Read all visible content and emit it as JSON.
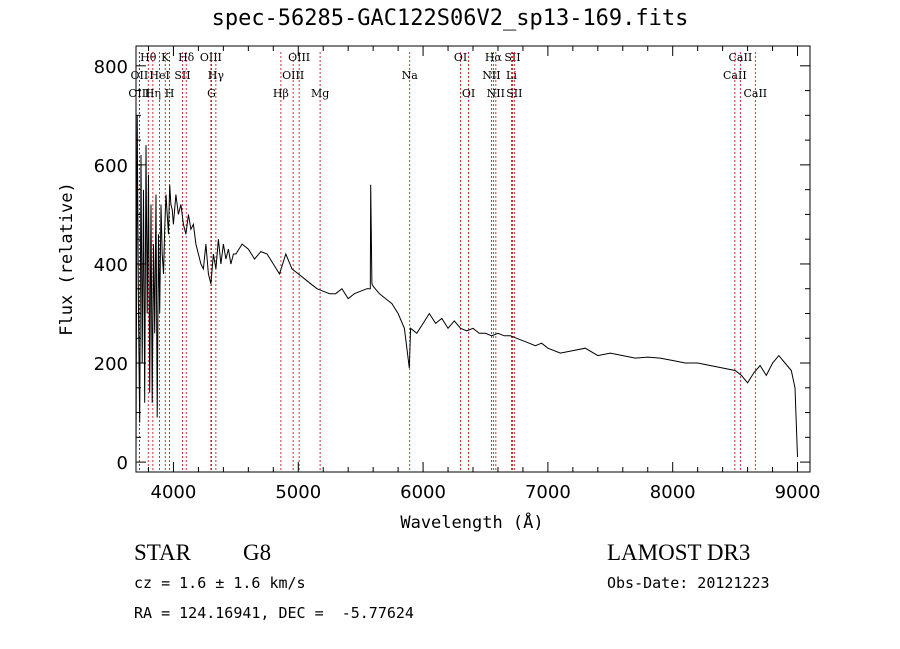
{
  "header": {
    "title": "spec-56285-GAC122S06V2_sp13-169.fits"
  },
  "info": {
    "object_class": "STAR",
    "subclass": "G8",
    "survey": "LAMOST DR3",
    "cz": "cz = 1.6 ± 1.6 km/s",
    "obs_date": "Obs-Date: 20121223",
    "coords": "RA = 124.16941, DEC =  -5.77624"
  },
  "colors": {
    "line_marker": "#c00000",
    "spectrum": "#000000"
  },
  "chart_data": {
    "type": "line",
    "title": "spec-56285-GAC122S06V2_sp13-169.fits",
    "xlabel": "Wavelength (Å)",
    "ylabel": "Flux (relative)",
    "xlim": [
      3700,
      9100
    ],
    "ylim": [
      -20,
      840
    ],
    "xticks": [
      4000,
      5000,
      6000,
      7000,
      8000,
      9000
    ],
    "yticks": [
      0,
      200,
      400,
      600,
      800
    ],
    "series": [
      {
        "name": "flux",
        "x": [
          3700,
          3710,
          3720,
          3730,
          3740,
          3750,
          3760,
          3770,
          3780,
          3790,
          3800,
          3810,
          3820,
          3830,
          3840,
          3850,
          3860,
          3870,
          3880,
          3890,
          3900,
          3910,
          3920,
          3930,
          3940,
          3950,
          3960,
          3970,
          3980,
          3990,
          4000,
          4020,
          4040,
          4060,
          4080,
          4100,
          4120,
          4140,
          4160,
          4180,
          4200,
          4220,
          4240,
          4260,
          4280,
          4300,
          4320,
          4340,
          4360,
          4380,
          4400,
          4420,
          4440,
          4460,
          4480,
          4500,
          4550,
          4600,
          4650,
          4700,
          4750,
          4800,
          4850,
          4900,
          4950,
          5000,
          5050,
          5100,
          5150,
          5200,
          5250,
          5300,
          5350,
          5400,
          5450,
          5500,
          5550,
          5577,
          5580,
          5590,
          5600,
          5650,
          5700,
          5750,
          5800,
          5850,
          5890,
          5900,
          5950,
          6000,
          6050,
          6100,
          6150,
          6200,
          6250,
          6300,
          6350,
          6400,
          6450,
          6500,
          6550,
          6600,
          6650,
          6700,
          6750,
          6800,
          6850,
          6900,
          6950,
          7000,
          7100,
          7200,
          7300,
          7400,
          7500,
          7600,
          7700,
          7800,
          7900,
          8000,
          8100,
          8200,
          8300,
          8400,
          8500,
          8550,
          8600,
          8650,
          8700,
          8750,
          8800,
          8850,
          8900,
          8950,
          8980,
          9000
        ],
        "values": [
          10,
          700,
          300,
          80,
          620,
          200,
          550,
          120,
          640,
          300,
          580,
          140,
          520,
          120,
          440,
          260,
          540,
          90,
          460,
          300,
          520,
          420,
          380,
          470,
          540,
          500,
          460,
          560,
          520,
          510,
          480,
          540,
          500,
          520,
          480,
          460,
          500,
          470,
          480,
          440,
          420,
          400,
          390,
          440,
          380,
          360,
          420,
          390,
          450,
          400,
          440,
          410,
          430,
          400,
          420,
          420,
          440,
          430,
          410,
          425,
          420,
          400,
          380,
          420,
          390,
          380,
          370,
          360,
          350,
          345,
          340,
          340,
          350,
          330,
          340,
          345,
          350,
          350,
          560,
          360,
          355,
          340,
          330,
          320,
          300,
          270,
          190,
          270,
          260,
          280,
          300,
          280,
          290,
          270,
          285,
          270,
          265,
          270,
          260,
          260,
          255,
          260,
          255,
          255,
          250,
          245,
          240,
          235,
          240,
          230,
          220,
          225,
          230,
          215,
          220,
          215,
          210,
          212,
          210,
          205,
          200,
          200,
          195,
          190,
          185,
          175,
          160,
          180,
          195,
          175,
          200,
          215,
          200,
          185,
          150,
          10
        ]
      }
    ],
    "line_markers": [
      {
        "label": "Hθ",
        "wavelength": 3798,
        "tier": 1
      },
      {
        "label": "OII",
        "wavelength": 3727,
        "tier": 2
      },
      {
        "label": "OIII",
        "wavelength": 3727,
        "tier": 3
      },
      {
        "label": "Hη",
        "wavelength": 3835,
        "tier": 3
      },
      {
        "label": "HeI",
        "wavelength": 3889,
        "tier": 2
      },
      {
        "label": "K",
        "wavelength": 3934,
        "tier": 1
      },
      {
        "label": "H",
        "wavelength": 3969,
        "tier": 3
      },
      {
        "label": "SII",
        "wavelength": 4072,
        "tier": 2
      },
      {
        "label": "Hδ",
        "wavelength": 4102,
        "tier": 1
      },
      {
        "label": "OIII",
        "wavelength": 4300,
        "tier": 1
      },
      {
        "label": "Hγ",
        "wavelength": 4340,
        "tier": 2
      },
      {
        "label": "G",
        "wavelength": 4305,
        "tier": 3
      },
      {
        "label": "Hβ",
        "wavelength": 4861,
        "tier": 3
      },
      {
        "label": "OIII",
        "wavelength": 4959,
        "tier": 2
      },
      {
        "label": "OIII",
        "wavelength": 5007,
        "tier": 1
      },
      {
        "label": "Mg",
        "wavelength": 5175,
        "tier": 3
      },
      {
        "label": "Na",
        "wavelength": 5893,
        "tier": 2
      },
      {
        "label": "OI",
        "wavelength": 6300,
        "tier": 1
      },
      {
        "label": "OI",
        "wavelength": 6364,
        "tier": 3
      },
      {
        "label": "Hα",
        "wavelength": 6563,
        "tier": 1
      },
      {
        "label": "NII",
        "wavelength": 6548,
        "tier": 2
      },
      {
        "label": "NII",
        "wavelength": 6583,
        "tier": 3
      },
      {
        "label": "SII",
        "wavelength": 6716,
        "tier": 1
      },
      {
        "label": "Li",
        "wavelength": 6708,
        "tier": 2
      },
      {
        "label": "SII",
        "wavelength": 6731,
        "tier": 3
      },
      {
        "label": "CaII",
        "wavelength": 8542,
        "tier": 1
      },
      {
        "label": "CaII",
        "wavelength": 8498,
        "tier": 2
      },
      {
        "label": "CaII",
        "wavelength": 8662,
        "tier": 3
      }
    ]
  }
}
